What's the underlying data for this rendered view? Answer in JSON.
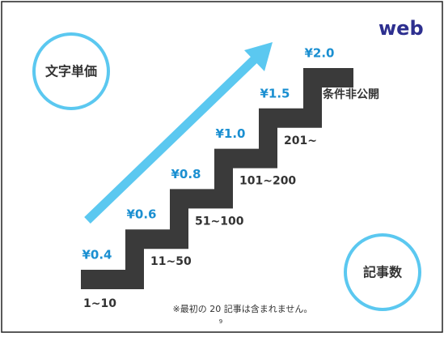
{
  "logo": "web",
  "circles": {
    "price_label": "文字単価",
    "count_label": "記事数"
  },
  "steps": [
    {
      "price": "¥0.4",
      "range": "1~10"
    },
    {
      "price": "¥0.6",
      "range": "11~50"
    },
    {
      "price": "¥0.8",
      "range": "51~100"
    },
    {
      "price": "¥1.0",
      "range": "101~200"
    },
    {
      "price": "¥1.5",
      "range": "201~"
    },
    {
      "price": "¥2.0",
      "range": "条件非公開"
    }
  ],
  "note": "※最初の 20 記事は含まれません。",
  "page_number": "9"
}
